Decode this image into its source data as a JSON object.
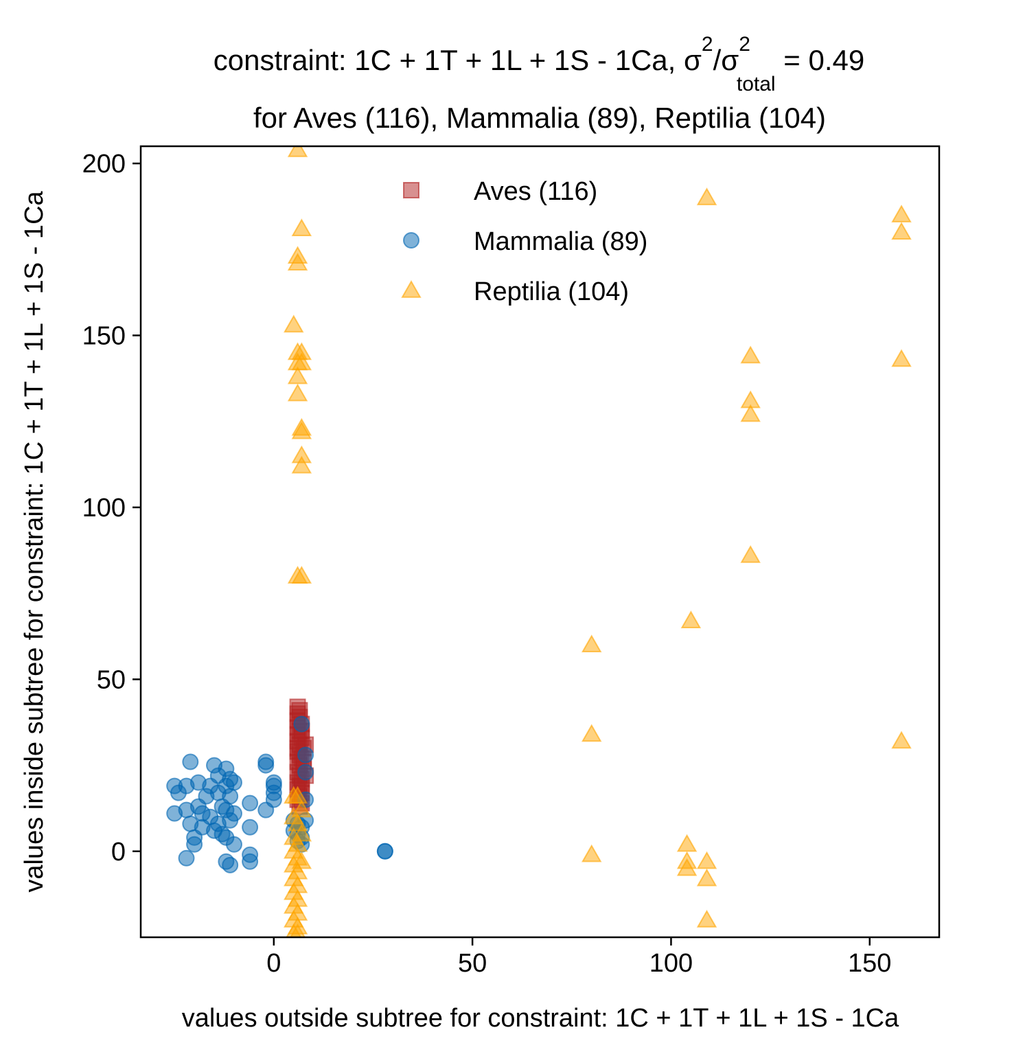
{
  "chart_data": {
    "type": "scatter",
    "title_line1": "constraint: 1C + 1T + 1L + 1S - 1Ca, σ",
    "title_sup1": "2",
    "title_mid": "/σ",
    "title_sup2": "2",
    "title_sub": "total",
    "title_tail": " =  0.49",
    "title_line2": "for Aves (116), Mammalia (89), Reptilia (104)",
    "xlabel": "values outside subtree for constraint: 1C + 1T + 1L + 1S - 1Ca",
    "ylabel": "values inside subtree for constraint: 1C + 1T + 1L + 1S - 1Ca",
    "xlim": [
      -33.5,
      167.5
    ],
    "ylim": [
      -25,
      205
    ],
    "xticks": [
      0,
      50,
      100,
      150
    ],
    "yticks": [
      0,
      50,
      100,
      150,
      200
    ],
    "legend_position": "upper-center",
    "series": [
      {
        "name": "Aves (116)",
        "marker": "square",
        "color": "#b22222",
        "points": [
          [
            6,
            42
          ],
          [
            6.5,
            41
          ],
          [
            6,
            40
          ],
          [
            6.5,
            39
          ],
          [
            6,
            38
          ],
          [
            7,
            37
          ],
          [
            6,
            36
          ],
          [
            6.5,
            35
          ],
          [
            6,
            34
          ],
          [
            7,
            33
          ],
          [
            6,
            32
          ],
          [
            6.5,
            31
          ],
          [
            7.5,
            30
          ],
          [
            6,
            29
          ],
          [
            6.5,
            28
          ],
          [
            7,
            27
          ],
          [
            6,
            26
          ],
          [
            6.5,
            25
          ],
          [
            7.5,
            24
          ],
          [
            6,
            23
          ],
          [
            6.5,
            22
          ],
          [
            7,
            21
          ],
          [
            6,
            20
          ],
          [
            6.5,
            19
          ],
          [
            6,
            18
          ],
          [
            7,
            17
          ],
          [
            6.5,
            16
          ],
          [
            6,
            15
          ],
          [
            7,
            14
          ],
          [
            6.5,
            13
          ],
          [
            8,
            31
          ],
          [
            7.5,
            26
          ],
          [
            8,
            22
          ],
          [
            7,
            35
          ],
          [
            6,
            30
          ],
          [
            7,
            19
          ]
        ]
      },
      {
        "name": "Mammalia (89)",
        "marker": "circle",
        "color": "#0066b2",
        "points": [
          [
            -25,
            19
          ],
          [
            -24,
            17
          ],
          [
            -25,
            11
          ],
          [
            -22,
            19
          ],
          [
            -22,
            12
          ],
          [
            -21,
            26
          ],
          [
            -21,
            8
          ],
          [
            -20,
            4
          ],
          [
            -20,
            2
          ],
          [
            -22,
            -2
          ],
          [
            -19,
            20
          ],
          [
            -19,
            13
          ],
          [
            -18,
            11
          ],
          [
            -18,
            7
          ],
          [
            -17,
            16
          ],
          [
            -16,
            19
          ],
          [
            -16,
            10
          ],
          [
            -15,
            25
          ],
          [
            -15,
            6
          ],
          [
            -14,
            22
          ],
          [
            -14,
            17
          ],
          [
            -14,
            8
          ],
          [
            -13,
            13
          ],
          [
            -13,
            5
          ],
          [
            -12,
            24
          ],
          [
            -12,
            19
          ],
          [
            -12,
            12
          ],
          [
            -12,
            4
          ],
          [
            -12,
            -3
          ],
          [
            -11,
            21
          ],
          [
            -11,
            16
          ],
          [
            -11,
            9
          ],
          [
            -11,
            -4
          ],
          [
            -10,
            20
          ],
          [
            -10,
            11
          ],
          [
            -10,
            2
          ],
          [
            -6,
            14
          ],
          [
            -6,
            7
          ],
          [
            -6,
            -1
          ],
          [
            -6,
            -3
          ],
          [
            -2,
            26
          ],
          [
            -2,
            25
          ],
          [
            -2,
            12
          ],
          [
            0,
            20
          ],
          [
            0,
            19
          ],
          [
            0,
            17
          ],
          [
            0,
            15
          ],
          [
            5,
            9
          ],
          [
            5,
            6
          ],
          [
            6,
            8
          ],
          [
            6,
            5
          ],
          [
            6,
            3
          ],
          [
            7,
            7
          ],
          [
            7,
            4
          ],
          [
            7,
            37
          ],
          [
            8,
            28
          ],
          [
            8,
            23
          ],
          [
            8,
            15
          ],
          [
            8,
            9
          ],
          [
            7,
            2
          ],
          [
            28,
            0
          ],
          [
            28,
            0
          ]
        ]
      },
      {
        "name": "Reptilia (104)",
        "marker": "triangle",
        "color": "#ffa500",
        "points": [
          [
            6,
            204
          ],
          [
            7,
            181
          ],
          [
            6,
            173
          ],
          [
            6,
            171
          ],
          [
            5,
            153
          ],
          [
            6,
            145
          ],
          [
            7,
            145
          ],
          [
            6,
            142
          ],
          [
            7,
            142
          ],
          [
            6,
            138
          ],
          [
            6,
            133
          ],
          [
            7,
            123
          ],
          [
            7,
            122
          ],
          [
            7,
            115
          ],
          [
            7,
            112
          ],
          [
            6,
            80
          ],
          [
            7,
            80
          ],
          [
            5,
            16
          ],
          [
            6,
            16
          ],
          [
            5,
            10
          ],
          [
            6,
            8
          ],
          [
            5,
            4
          ],
          [
            6,
            2
          ],
          [
            5,
            0
          ],
          [
            6,
            -2
          ],
          [
            5,
            -4
          ],
          [
            6,
            -6
          ],
          [
            5,
            -8
          ],
          [
            6,
            -10
          ],
          [
            5,
            -12
          ],
          [
            6,
            -14
          ],
          [
            5,
            -16
          ],
          [
            6,
            -18
          ],
          [
            5,
            -20
          ],
          [
            6,
            -22
          ],
          [
            5,
            -24
          ],
          [
            6,
            -24
          ],
          [
            7,
            -3
          ],
          [
            7,
            5
          ],
          [
            7,
            12
          ],
          [
            80,
            60
          ],
          [
            80,
            34
          ],
          [
            80,
            -1
          ],
          [
            104,
            2
          ],
          [
            104,
            -3
          ],
          [
            104,
            -5
          ],
          [
            105,
            67
          ],
          [
            109,
            190
          ],
          [
            109,
            -3
          ],
          [
            109,
            -8
          ],
          [
            109,
            -20
          ],
          [
            120,
            144
          ],
          [
            120,
            131
          ],
          [
            120,
            127
          ],
          [
            120,
            86
          ],
          [
            158,
            185
          ],
          [
            158,
            180
          ],
          [
            158,
            143
          ],
          [
            158,
            32
          ]
        ]
      }
    ]
  }
}
